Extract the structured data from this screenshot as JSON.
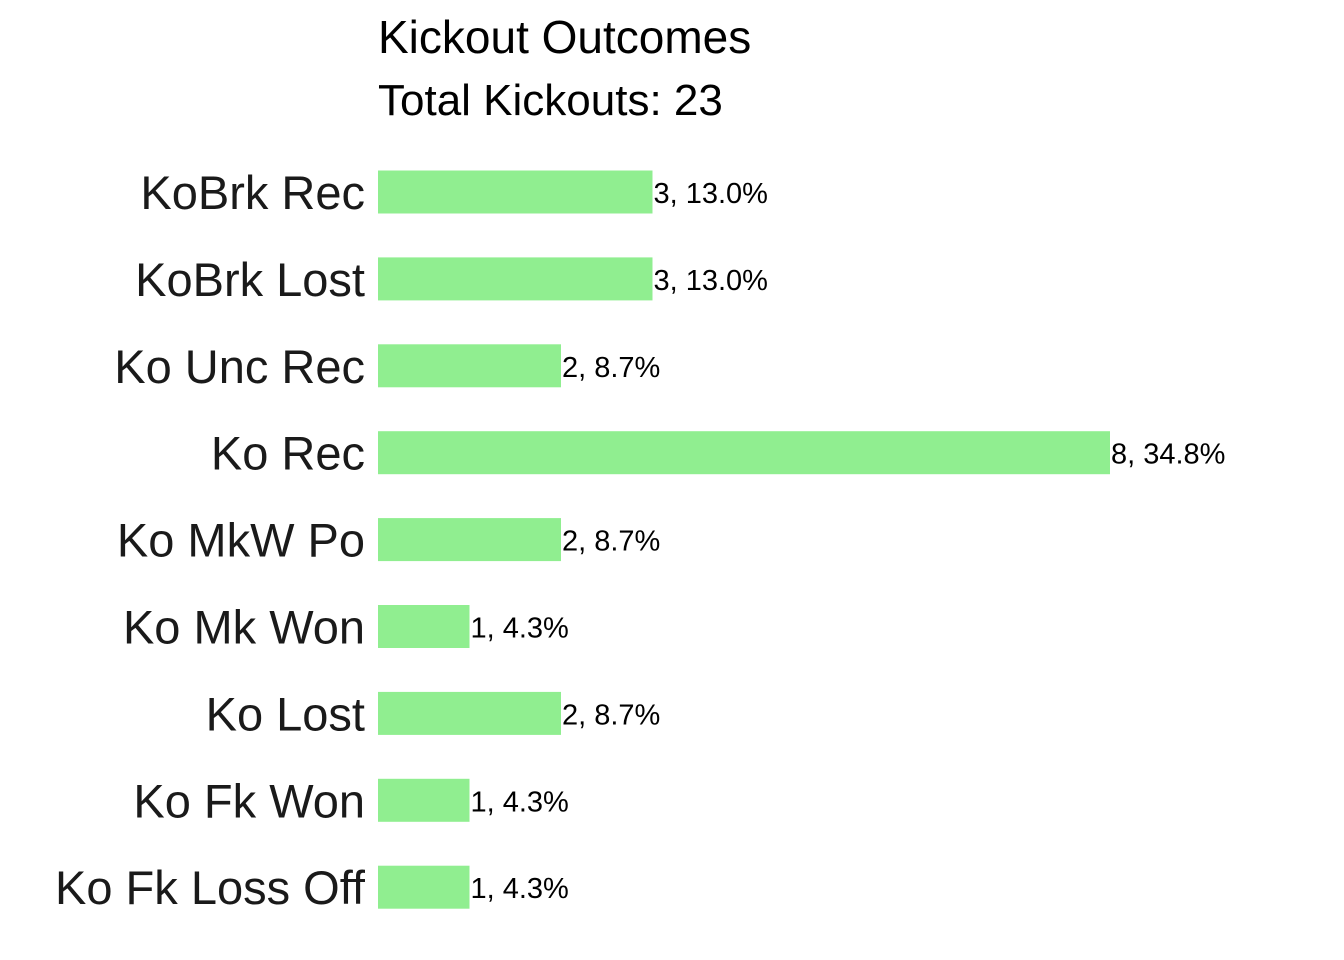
{
  "chart_data": {
    "type": "bar",
    "orientation": "horizontal",
    "title": "Kickout Outcomes",
    "subtitle": "Total Kickouts: 23",
    "categories": [
      "KoBrk Rec",
      "KoBrk Lost",
      "Ko Unc Rec",
      "Ko Rec",
      "Ko MkW Po",
      "Ko Mk Won",
      "Ko Lost",
      "Ko Fk Won",
      "Ko Fk Loss Off"
    ],
    "values": [
      3,
      3,
      2,
      8,
      2,
      1,
      2,
      1,
      1
    ],
    "labels": [
      "3, 13.0%",
      "3, 13.0%",
      "2, 8.7%",
      "8, 34.8%",
      "2, 8.7%",
      "1, 4.3%",
      "2, 8.7%",
      "1, 4.3%",
      "1, 4.3%"
    ],
    "xlim": [
      0,
      10
    ],
    "bar_color": "#90EE90",
    "grid": false,
    "xlabel": "",
    "ylabel": ""
  }
}
